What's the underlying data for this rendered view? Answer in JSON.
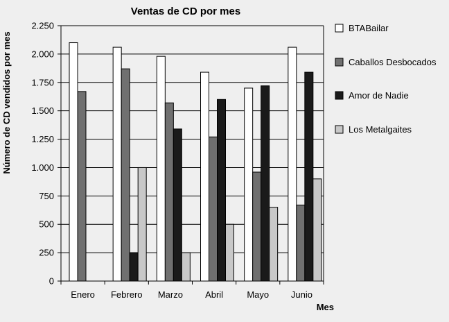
{
  "chart_data": {
    "type": "bar",
    "title": "Ventas de CD por mes",
    "xlabel": "Mes",
    "ylabel": "Número de CD vendidos por mes",
    "categories": [
      "Enero",
      "Febrero",
      "Marzo",
      "Abril",
      "Mayo",
      "Junio"
    ],
    "ylim": [
      0,
      2250
    ],
    "yticks": [
      0,
      250,
      500,
      750,
      1000,
      1250,
      1500,
      1750,
      2000,
      2250
    ],
    "ytick_labels": [
      "0",
      "250",
      "500",
      "750",
      "1.000",
      "1.250",
      "1.500",
      "1.750",
      "2.000",
      "2.250"
    ],
    "grid": true,
    "legend_position": "right",
    "series": [
      {
        "name": "BTABailar",
        "color": "#ffffff",
        "values": [
          2100,
          2060,
          1980,
          1840,
          1700,
          2060
        ]
      },
      {
        "name": "Caballos Desbocados",
        "color": "#707070",
        "values": [
          1670,
          1870,
          1570,
          1270,
          960,
          670
        ]
      },
      {
        "name": "Amor de Nadie",
        "color": "#1a1a1a",
        "values": [
          0,
          250,
          1340,
          1600,
          1720,
          1840
        ]
      },
      {
        "name": "Los Metalgaites",
        "color": "#c8c8c8",
        "values": [
          0,
          1000,
          250,
          500,
          650,
          900
        ]
      }
    ]
  }
}
